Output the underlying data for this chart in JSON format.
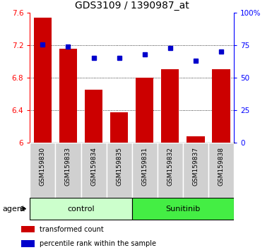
{
  "title": "GDS3109 / 1390987_at",
  "samples": [
    "GSM159830",
    "GSM159833",
    "GSM159834",
    "GSM159835",
    "GSM159831",
    "GSM159832",
    "GSM159837",
    "GSM159838"
  ],
  "bar_values": [
    7.54,
    7.15,
    6.65,
    6.37,
    6.8,
    6.9,
    6.08,
    6.9
  ],
  "percentile_values": [
    75.5,
    73.5,
    65.0,
    65.0,
    68.0,
    72.5,
    63.0,
    70.0
  ],
  "ylim_left": [
    6.0,
    7.6
  ],
  "ylim_right": [
    0,
    100
  ],
  "yticks_left": [
    6.0,
    6.4,
    6.8,
    7.2,
    7.6
  ],
  "yticks_left_labels": [
    "6",
    "6.4",
    "6.8",
    "7.2",
    "7.6"
  ],
  "yticks_right": [
    0,
    25,
    50,
    75,
    100
  ],
  "yticks_right_labels": [
    "0",
    "25",
    "50",
    "75",
    "100%"
  ],
  "bar_color": "#cc0000",
  "dot_color": "#0000cc",
  "bar_bottom": 6.0,
  "groups": [
    {
      "label": "control",
      "color": "#ccffcc",
      "border_color": "#000000",
      "indices": [
        0,
        1,
        2,
        3
      ]
    },
    {
      "label": "Sunitinib",
      "color": "#44ee44",
      "border_color": "#000000",
      "indices": [
        4,
        5,
        6,
        7
      ]
    }
  ],
  "legend_bar_label": "transformed count",
  "legend_dot_label": "percentile rank within the sample",
  "agent_label": "agent",
  "title_fontsize": 10,
  "tick_fontsize": 7.5,
  "sample_fontsize": 6.5,
  "group_fontsize": 8,
  "legend_fontsize": 7
}
